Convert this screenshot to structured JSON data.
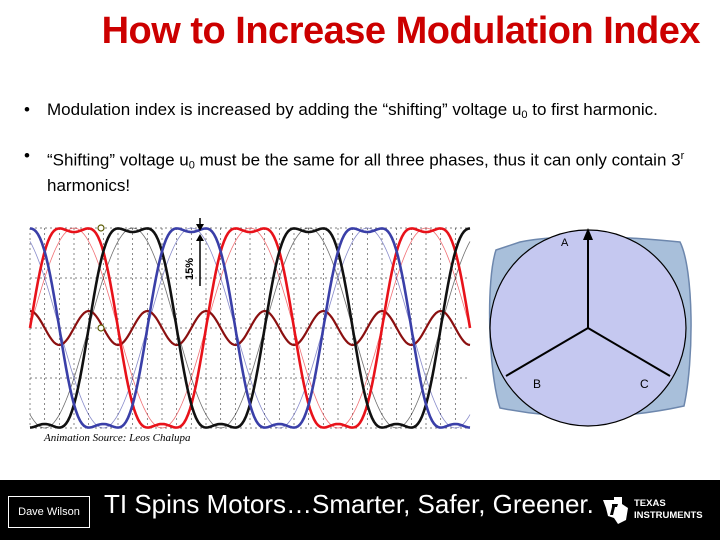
{
  "slide": {
    "title": "How to Increase Modulation Index",
    "bullets": [
      {
        "marker": "•",
        "pre": "Modulation index is increased by adding the “shifting” voltage u",
        "sub": "0",
        "post": " to first harmonic."
      },
      {
        "marker": "•",
        "pre": "“Shifting” voltage u",
        "sub": "0",
        "post": " must be the same for all three phases, thus it can only contain 3",
        "sup": "r",
        "post2": " harmonics!"
      }
    ],
    "caption": "Animation Source:  Leos Chalupa",
    "percent_label": "15%",
    "phasor_labels": {
      "a": "A",
      "b": "B",
      "c": "C"
    }
  },
  "footer": {
    "author": "Dave Wilson",
    "slogan": "TI Spins Motors…Smarter, Safer, Greener.",
    "logo_line1": "TEXAS",
    "logo_line2": "INSTRUMENTS"
  },
  "colors": {
    "title": "#cc0000",
    "phase_red": "#e8121a",
    "phase_black": "#111111",
    "phase_blue": "#3a3fa8",
    "shift_dark_red": "#8b1010",
    "circle_fill": "#c5c8f0",
    "blob_fill": "#a8bfda"
  }
}
